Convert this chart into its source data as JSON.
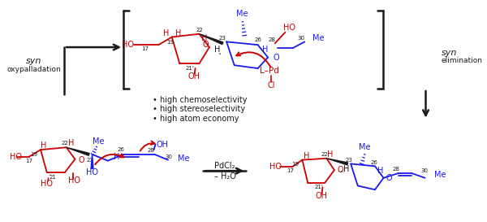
{
  "bg_color": "#ffffff",
  "red": "#cc0000",
  "blue": "#1a1aee",
  "black": "#1a1a1a",
  "bullet_texts": [
    "• high chemoselectivity",
    "• high stereoselectivity",
    "• high atom economy"
  ]
}
